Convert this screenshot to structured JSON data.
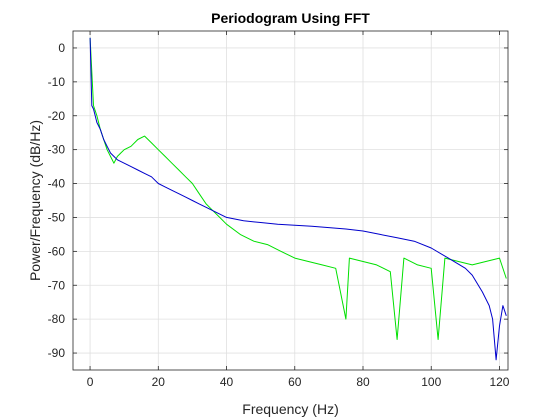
{
  "chart_data": {
    "type": "line",
    "title": "Periodogram Using FFT",
    "xlabel": "Frequency (Hz)",
    "ylabel": "Power/Frequency (dB/Hz)",
    "xlim": [
      -5,
      122.5
    ],
    "ylim": [
      -95,
      5
    ],
    "xticks": [
      0,
      20,
      40,
      60,
      80,
      100,
      120
    ],
    "yticks": [
      0,
      -10,
      -20,
      -30,
      -40,
      -50,
      -60,
      -70,
      -80,
      -90
    ],
    "grid": true,
    "colors": {
      "green_series": "#00e000",
      "blue_series": "#0000cc",
      "grid": "#e0e0e0",
      "axes": "#262626"
    },
    "series": [
      {
        "color": "green",
        "x": [
          0,
          1,
          2,
          3,
          4,
          5,
          6,
          7,
          8,
          9,
          10,
          12,
          14,
          16,
          18,
          20,
          22,
          24,
          26,
          28,
          30,
          32,
          34,
          36,
          38,
          40,
          44,
          48,
          52,
          56,
          60,
          64,
          68,
          72,
          75,
          76,
          80,
          84,
          88,
          90,
          92,
          96,
          100,
          102,
          104,
          108,
          112,
          116,
          120,
          122
        ],
        "y": [
          3,
          -17,
          -20,
          -24,
          -27,
          -30,
          -32,
          -34,
          -32,
          -31,
          -30,
          -29,
          -27,
          -26,
          -28,
          -30,
          -32,
          -34,
          -36,
          -38,
          -40,
          -43,
          -46,
          -48,
          -50,
          -52,
          -55,
          -57,
          -58,
          -60,
          -62,
          -63,
          -64,
          -65,
          -80,
          -62,
          -63,
          -64,
          -66,
          -86,
          -62,
          -64,
          -65,
          -86,
          -62,
          -63,
          -64,
          -63,
          -62,
          -68
        ]
      },
      {
        "color": "blue",
        "x": [
          0,
          0.5,
          1,
          1.5,
          2,
          3,
          4,
          5,
          6,
          7,
          8,
          10,
          12,
          14,
          16,
          18,
          20,
          22,
          24,
          26,
          28,
          30,
          32,
          34,
          36,
          38,
          40,
          45,
          50,
          55,
          60,
          65,
          70,
          75,
          80,
          85,
          90,
          95,
          100,
          105,
          110,
          112,
          115,
          117,
          118,
          119,
          120,
          121,
          122
        ],
        "y": [
          3,
          -17,
          -18,
          -20,
          -22,
          -24,
          -27,
          -29,
          -31,
          -32,
          -33,
          -34,
          -35,
          -36,
          -37,
          -38,
          -40,
          -41,
          -42,
          -43,
          -44,
          -45,
          -46,
          -47,
          -48,
          -49,
          -50,
          -51,
          -51.5,
          -52,
          -52.3,
          -52.6,
          -53,
          -53.4,
          -54,
          -55,
          -56,
          -57,
          -59,
          -62,
          -65,
          -67,
          -72,
          -76,
          -80,
          -92,
          -82,
          -76,
          -79
        ]
      }
    ]
  }
}
